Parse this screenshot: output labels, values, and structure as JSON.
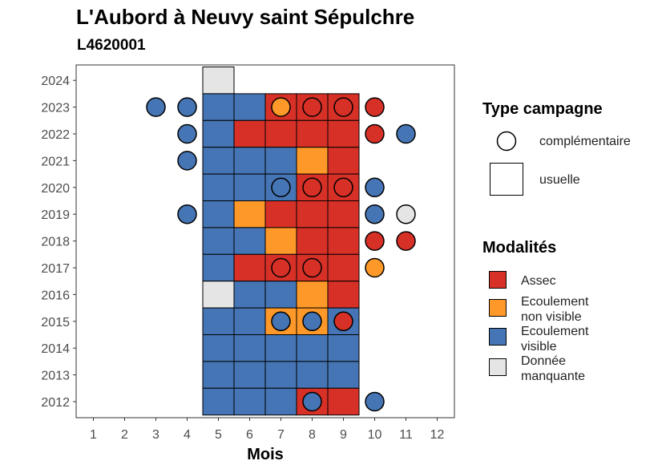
{
  "chart_data": {
    "type": "heatmap",
    "title": "L'Aubord à Neuvy saint Sépulchre",
    "subtitle": "L4620001",
    "xlabel": "Mois",
    "ylabel": "",
    "x_ticks": [
      "1",
      "2",
      "3",
      "4",
      "5",
      "6",
      "7",
      "8",
      "9",
      "10",
      "11",
      "12"
    ],
    "y_ticks": [
      "2012",
      "2013",
      "2014",
      "2015",
      "2016",
      "2017",
      "2018",
      "2019",
      "2020",
      "2021",
      "2022",
      "2023",
      "2024"
    ],
    "colors": {
      "Assec": "#d73027",
      "Ecoulement non visible": "#fe9929",
      "Ecoulement visible": "#4575b4",
      "Donnée manquante": "#e5e5e5"
    },
    "usuelle": [
      {
        "year": 2024,
        "month": 5,
        "value": "Donnée manquante"
      },
      {
        "year": 2023,
        "month": 5,
        "value": "Ecoulement visible"
      },
      {
        "year": 2023,
        "month": 6,
        "value": "Ecoulement visible"
      },
      {
        "year": 2023,
        "month": 7,
        "value": "Assec"
      },
      {
        "year": 2023,
        "month": 8,
        "value": "Assec"
      },
      {
        "year": 2023,
        "month": 9,
        "value": "Assec"
      },
      {
        "year": 2022,
        "month": 5,
        "value": "Ecoulement visible"
      },
      {
        "year": 2022,
        "month": 6,
        "value": "Assec"
      },
      {
        "year": 2022,
        "month": 7,
        "value": "Assec"
      },
      {
        "year": 2022,
        "month": 8,
        "value": "Assec"
      },
      {
        "year": 2022,
        "month": 9,
        "value": "Assec"
      },
      {
        "year": 2021,
        "month": 5,
        "value": "Ecoulement visible"
      },
      {
        "year": 2021,
        "month": 6,
        "value": "Ecoulement visible"
      },
      {
        "year": 2021,
        "month": 7,
        "value": "Ecoulement visible"
      },
      {
        "year": 2021,
        "month": 8,
        "value": "Ecoulement non visible"
      },
      {
        "year": 2021,
        "month": 9,
        "value": "Assec"
      },
      {
        "year": 2020,
        "month": 5,
        "value": "Ecoulement visible"
      },
      {
        "year": 2020,
        "month": 6,
        "value": "Ecoulement visible"
      },
      {
        "year": 2020,
        "month": 7,
        "value": "Ecoulement visible"
      },
      {
        "year": 2020,
        "month": 8,
        "value": "Assec"
      },
      {
        "year": 2020,
        "month": 9,
        "value": "Assec"
      },
      {
        "year": 2019,
        "month": 5,
        "value": "Ecoulement visible"
      },
      {
        "year": 2019,
        "month": 6,
        "value": "Ecoulement non visible"
      },
      {
        "year": 2019,
        "month": 7,
        "value": "Assec"
      },
      {
        "year": 2019,
        "month": 8,
        "value": "Assec"
      },
      {
        "year": 2019,
        "month": 9,
        "value": "Assec"
      },
      {
        "year": 2018,
        "month": 5,
        "value": "Ecoulement visible"
      },
      {
        "year": 2018,
        "month": 6,
        "value": "Ecoulement visible"
      },
      {
        "year": 2018,
        "month": 7,
        "value": "Ecoulement non visible"
      },
      {
        "year": 2018,
        "month": 8,
        "value": "Assec"
      },
      {
        "year": 2018,
        "month": 9,
        "value": "Assec"
      },
      {
        "year": 2017,
        "month": 5,
        "value": "Ecoulement visible"
      },
      {
        "year": 2017,
        "month": 6,
        "value": "Assec"
      },
      {
        "year": 2017,
        "month": 7,
        "value": "Assec"
      },
      {
        "year": 2017,
        "month": 8,
        "value": "Assec"
      },
      {
        "year": 2017,
        "month": 9,
        "value": "Assec"
      },
      {
        "year": 2016,
        "month": 5,
        "value": "Donnée manquante"
      },
      {
        "year": 2016,
        "month": 6,
        "value": "Ecoulement visible"
      },
      {
        "year": 2016,
        "month": 7,
        "value": "Ecoulement visible"
      },
      {
        "year": 2016,
        "month": 8,
        "value": "Ecoulement non visible"
      },
      {
        "year": 2016,
        "month": 9,
        "value": "Assec"
      },
      {
        "year": 2015,
        "month": 5,
        "value": "Ecoulement visible"
      },
      {
        "year": 2015,
        "month": 6,
        "value": "Ecoulement visible"
      },
      {
        "year": 2015,
        "month": 7,
        "value": "Ecoulement non visible"
      },
      {
        "year": 2015,
        "month": 8,
        "value": "Ecoulement non visible"
      },
      {
        "year": 2015,
        "month": 9,
        "value": "Ecoulement visible"
      },
      {
        "year": 2014,
        "month": 5,
        "value": "Ecoulement visible"
      },
      {
        "year": 2014,
        "month": 6,
        "value": "Ecoulement visible"
      },
      {
        "year": 2014,
        "month": 7,
        "value": "Ecoulement visible"
      },
      {
        "year": 2014,
        "month": 8,
        "value": "Ecoulement visible"
      },
      {
        "year": 2014,
        "month": 9,
        "value": "Ecoulement visible"
      },
      {
        "year": 2013,
        "month": 5,
        "value": "Ecoulement visible"
      },
      {
        "year": 2013,
        "month": 6,
        "value": "Ecoulement visible"
      },
      {
        "year": 2013,
        "month": 7,
        "value": "Ecoulement visible"
      },
      {
        "year": 2013,
        "month": 8,
        "value": "Ecoulement visible"
      },
      {
        "year": 2013,
        "month": 9,
        "value": "Ecoulement visible"
      },
      {
        "year": 2012,
        "month": 5,
        "value": "Ecoulement visible"
      },
      {
        "year": 2012,
        "month": 6,
        "value": "Ecoulement visible"
      },
      {
        "year": 2012,
        "month": 7,
        "value": "Ecoulement visible"
      },
      {
        "year": 2012,
        "month": 8,
        "value": "Assec"
      },
      {
        "year": 2012,
        "month": 9,
        "value": "Assec"
      }
    ],
    "complementaire": [
      {
        "year": 2023,
        "month": 3,
        "value": "Ecoulement visible"
      },
      {
        "year": 2023,
        "month": 4,
        "value": "Ecoulement visible"
      },
      {
        "year": 2023,
        "month": 7,
        "value": "Ecoulement non visible"
      },
      {
        "year": 2023,
        "month": 8,
        "value": "Assec"
      },
      {
        "year": 2023,
        "month": 9,
        "value": "Assec"
      },
      {
        "year": 2023,
        "month": 10,
        "value": "Assec"
      },
      {
        "year": 2022,
        "month": 4,
        "value": "Ecoulement visible"
      },
      {
        "year": 2022,
        "month": 10,
        "value": "Assec"
      },
      {
        "year": 2022,
        "month": 11,
        "value": "Ecoulement visible"
      },
      {
        "year": 2021,
        "month": 4,
        "value": "Ecoulement visible"
      },
      {
        "year": 2020,
        "month": 7,
        "value": "Ecoulement visible"
      },
      {
        "year": 2020,
        "month": 8,
        "value": "Assec"
      },
      {
        "year": 2020,
        "month": 9,
        "value": "Assec"
      },
      {
        "year": 2020,
        "month": 10,
        "value": "Ecoulement visible"
      },
      {
        "year": 2019,
        "month": 4,
        "value": "Ecoulement visible"
      },
      {
        "year": 2019,
        "month": 10,
        "value": "Ecoulement visible"
      },
      {
        "year": 2019,
        "month": 11,
        "value": "Donnée manquante"
      },
      {
        "year": 2018,
        "month": 10,
        "value": "Assec"
      },
      {
        "year": 2018,
        "month": 11,
        "value": "Assec"
      },
      {
        "year": 2017,
        "month": 7,
        "value": "Assec"
      },
      {
        "year": 2017,
        "month": 8,
        "value": "Assec"
      },
      {
        "year": 2017,
        "month": 10,
        "value": "Ecoulement non visible"
      },
      {
        "year": 2015,
        "month": 7,
        "value": "Ecoulement visible"
      },
      {
        "year": 2015,
        "month": 8,
        "value": "Ecoulement visible"
      },
      {
        "year": 2015,
        "month": 9,
        "value": "Assec"
      },
      {
        "year": 2012,
        "month": 8,
        "value": "Ecoulement visible"
      },
      {
        "year": 2012,
        "month": 10,
        "value": "Ecoulement visible"
      }
    ]
  },
  "legend": {
    "type_title": "Type campagne",
    "type_items": [
      "complémentaire",
      "usuelle"
    ],
    "modalites_title": "Modalités",
    "modalites_items": [
      {
        "line1": "Assec",
        "line2": "",
        "key": "Assec"
      },
      {
        "line1": "Ecoulement",
        "line2": "non visible",
        "key": "Ecoulement non visible"
      },
      {
        "line1": "Ecoulement",
        "line2": "visible",
        "key": "Ecoulement visible"
      },
      {
        "line1": "Donnée",
        "line2": "manquante",
        "key": "Donnée manquante"
      }
    ]
  }
}
